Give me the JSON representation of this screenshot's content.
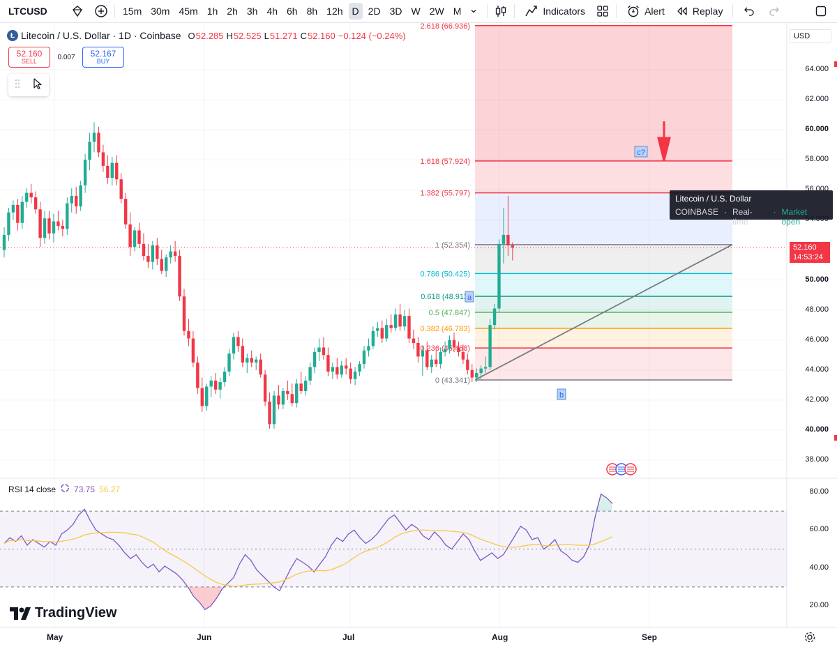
{
  "toolbar": {
    "symbol": "LTCUSD",
    "intervals": [
      "15m",
      "30m",
      "45m",
      "1h",
      "2h",
      "3h",
      "4h",
      "6h",
      "8h",
      "12h",
      "D",
      "2D",
      "3D",
      "W",
      "2W",
      "M"
    ],
    "active_interval": "D",
    "indicators_label": "Indicators",
    "alert_label": "Alert",
    "replay_label": "Replay"
  },
  "legend": {
    "title": "Litecoin / U.S. Dollar · 1D · Coinbase",
    "o_label": "O",
    "o_value": "52.285",
    "h_label": "H",
    "h_value": "52.525",
    "l_label": "L",
    "l_value": "51.271",
    "c_label": "C",
    "c_value": "52.160",
    "change": "−0.124 (−0.24%)"
  },
  "trade": {
    "sell_price": "52.160",
    "sell_label": "SELL",
    "spread": "0.007",
    "buy_price": "52.167",
    "buy_label": "BUY"
  },
  "tooltip": {
    "title": "Litecoin / U.S. Dollar",
    "exchange": "COINBASE",
    "sep1": "·",
    "feed": "Real-time",
    "sep2": "·",
    "status": "Market open"
  },
  "price_scale": {
    "currency": "USD",
    "labels": [
      "64.000",
      "62.000",
      "60.000",
      "58.000",
      "56.000",
      "54.000",
      "50.000",
      "48.000",
      "46.000",
      "44.000",
      "42.000",
      "40.000",
      "38.000"
    ],
    "bold_labels": [
      "60.000",
      "50.000",
      "40.000"
    ],
    "current_price": "52.160",
    "countdown": "14:53:24"
  },
  "fib_levels": [
    {
      "label": "2.618 (66.936)",
      "value": 66.936,
      "color": "#f23645"
    },
    {
      "label": "1.618 (57.924)",
      "value": 57.924,
      "color": "#f23645"
    },
    {
      "label": "1.382 (55.797)",
      "value": 55.797,
      "color": "#f23645"
    },
    {
      "label": "1 (52.354)",
      "value": 52.354,
      "color": "#787b86"
    },
    {
      "label": "0.786 (50.425)",
      "value": 50.425,
      "color": "#00bcd4"
    },
    {
      "label": "0.618 (48.911)",
      "value": 48.911,
      "color": "#089981"
    },
    {
      "label": "0.5 (47.847)",
      "value": 47.847,
      "color": "#4caf50"
    },
    {
      "label": "0.382 (46.783)",
      "value": 46.783,
      "color": "#ff9800"
    },
    {
      "label": "0.236 (45.468)",
      "value": 45.468,
      "color": "#f23645"
    },
    {
      "label": "0 (43.341)",
      "value": 43.341,
      "color": "#787b86"
    }
  ],
  "wave_labels": {
    "a": "a",
    "b": "b",
    "c": "c?"
  },
  "rsi": {
    "label": "RSI 14 close",
    "value": "73.75",
    "ma_value": "56.27",
    "scale": [
      "80.00",
      "60.00",
      "40.00",
      "20.00"
    ],
    "upper": 70,
    "lower": 30,
    "mid": 50
  },
  "time_axis": [
    "May",
    "Jun",
    "Jul",
    "Aug",
    "Sep"
  ],
  "brand": "TradingView",
  "colors": {
    "up": "#22ab94",
    "down": "#f23645",
    "accent": "#2962ff"
  },
  "candles": [
    [
      52.0,
      53.5,
      51.5,
      53.0
    ],
    [
      53.0,
      54.8,
      52.6,
      54.5
    ],
    [
      54.5,
      55.3,
      54.0,
      55.0
    ],
    [
      55.0,
      55.4,
      53.3,
      53.8
    ],
    [
      53.8,
      55.6,
      53.4,
      55.2
    ],
    [
      55.2,
      56.1,
      54.8,
      55.8
    ],
    [
      55.8,
      56.4,
      55.1,
      55.5
    ],
    [
      55.5,
      55.9,
      54.4,
      54.7
    ],
    [
      54.7,
      55.2,
      52.2,
      52.8
    ],
    [
      52.8,
      54.6,
      52.4,
      54.1
    ],
    [
      54.1,
      54.6,
      52.7,
      53.1
    ],
    [
      53.1,
      54.4,
      52.5,
      53.9
    ],
    [
      53.9,
      54.6,
      53.3,
      53.6
    ],
    [
      53.6,
      54.0,
      52.9,
      53.4
    ],
    [
      53.4,
      55.5,
      53.0,
      55.1
    ],
    [
      55.1,
      56.1,
      54.5,
      55.6
    ],
    [
      55.6,
      56.2,
      54.4,
      54.9
    ],
    [
      54.9,
      56.6,
      54.6,
      56.3
    ],
    [
      56.3,
      58.4,
      55.8,
      58.0
    ],
    [
      58.0,
      59.8,
      57.3,
      59.2
    ],
    [
      59.2,
      60.5,
      58.5,
      59.8
    ],
    [
      59.8,
      60.2,
      58.2,
      58.5
    ],
    [
      58.5,
      59.0,
      57.2,
      57.6
    ],
    [
      57.6,
      58.3,
      56.4,
      56.8
    ],
    [
      56.8,
      58.2,
      56.3,
      57.8
    ],
    [
      57.8,
      58.3,
      56.3,
      56.7
    ],
    [
      56.7,
      57.1,
      55.1,
      55.4
    ],
    [
      55.4,
      55.8,
      53.4,
      53.7
    ],
    [
      53.7,
      54.5,
      51.6,
      52.2
    ],
    [
      52.2,
      53.5,
      51.9,
      53.3
    ],
    [
      53.3,
      53.8,
      52.1,
      52.4
    ],
    [
      52.4,
      53.1,
      51.3,
      51.6
    ],
    [
      51.6,
      52.4,
      50.8,
      51.2
    ],
    [
      51.2,
      52.6,
      50.7,
      52.3
    ],
    [
      52.3,
      52.8,
      51.0,
      51.4
    ],
    [
      51.4,
      52.0,
      50.4,
      50.6
    ],
    [
      50.6,
      51.7,
      50.2,
      51.5
    ],
    [
      51.5,
      52.3,
      51.1,
      51.9
    ],
    [
      51.9,
      52.6,
      51.2,
      51.6
    ],
    [
      51.6,
      52.0,
      48.6,
      48.9
    ],
    [
      48.9,
      49.4,
      46.3,
      46.6
    ],
    [
      46.6,
      47.4,
      45.6,
      46.1
    ],
    [
      46.1,
      46.6,
      44.2,
      44.5
    ],
    [
      44.5,
      44.9,
      42.4,
      42.8
    ],
    [
      42.8,
      43.5,
      41.2,
      41.6
    ],
    [
      41.6,
      43.1,
      41.3,
      42.9
    ],
    [
      42.9,
      43.6,
      42.2,
      43.3
    ],
    [
      43.3,
      43.8,
      42.4,
      42.7
    ],
    [
      42.7,
      43.5,
      42.1,
      43.2
    ],
    [
      43.2,
      44.2,
      42.9,
      43.9
    ],
    [
      43.9,
      45.4,
      43.6,
      45.1
    ],
    [
      45.1,
      46.5,
      44.7,
      46.2
    ],
    [
      46.2,
      46.6,
      45.2,
      45.6
    ],
    [
      45.6,
      46.1,
      44.2,
      44.5
    ],
    [
      44.5,
      45.1,
      43.8,
      44.8
    ],
    [
      44.8,
      45.3,
      44.2,
      44.5
    ],
    [
      44.5,
      44.9,
      44.0,
      44.7
    ],
    [
      44.7,
      45.1,
      43.5,
      43.7
    ],
    [
      43.7,
      44.0,
      41.6,
      41.9
    ],
    [
      41.9,
      42.5,
      40.1,
      40.4
    ],
    [
      40.4,
      42.6,
      40.1,
      42.3
    ],
    [
      42.3,
      43.0,
      41.4,
      41.7
    ],
    [
      41.7,
      42.8,
      41.4,
      42.6
    ],
    [
      42.6,
      43.3,
      42.0,
      42.4
    ],
    [
      42.4,
      43.1,
      41.6,
      41.8
    ],
    [
      41.8,
      43.4,
      41.5,
      43.1
    ],
    [
      43.1,
      43.9,
      42.4,
      42.6
    ],
    [
      42.6,
      43.6,
      42.3,
      43.3
    ],
    [
      43.3,
      44.5,
      43.0,
      44.2
    ],
    [
      44.2,
      45.5,
      43.8,
      45.2
    ],
    [
      45.2,
      46.1,
      44.6,
      45.5
    ],
    [
      45.5,
      46.2,
      44.7,
      45.0
    ],
    [
      45.0,
      45.5,
      43.6,
      43.9
    ],
    [
      43.9,
      44.5,
      43.4,
      44.2
    ],
    [
      44.2,
      44.8,
      43.4,
      43.7
    ],
    [
      43.7,
      44.6,
      43.5,
      44.3
    ],
    [
      44.3,
      44.8,
      43.7,
      44.1
    ],
    [
      44.1,
      44.5,
      43.1,
      43.4
    ],
    [
      43.4,
      44.2,
      43.0,
      43.9
    ],
    [
      43.9,
      44.6,
      43.6,
      44.4
    ],
    [
      44.4,
      45.6,
      44.1,
      45.3
    ],
    [
      45.3,
      46.1,
      44.9,
      45.6
    ],
    [
      45.6,
      46.9,
      45.4,
      46.6
    ],
    [
      46.6,
      47.2,
      46.2,
      46.8
    ],
    [
      46.8,
      47.3,
      45.8,
      46.1
    ],
    [
      46.1,
      47.4,
      45.9,
      47.0
    ],
    [
      47.0,
      47.7,
      46.5,
      46.8
    ],
    [
      46.8,
      48.1,
      46.6,
      47.7
    ],
    [
      47.7,
      48.4,
      46.6,
      46.9
    ],
    [
      46.9,
      48.0,
      46.6,
      47.6
    ],
    [
      47.6,
      48.1,
      45.8,
      46.1
    ],
    [
      46.1,
      46.7,
      45.4,
      45.8
    ],
    [
      45.8,
      46.2,
      44.5,
      44.9
    ],
    [
      44.9,
      45.6,
      43.6,
      45.3
    ],
    [
      45.3,
      45.9,
      44.0,
      44.2
    ],
    [
      44.2,
      45.0,
      43.8,
      44.7
    ],
    [
      44.7,
      45.3,
      44.2,
      44.4
    ],
    [
      44.4,
      45.5,
      44.1,
      45.2
    ],
    [
      45.2,
      45.9,
      44.9,
      45.4
    ],
    [
      45.4,
      46.3,
      45.1,
      46.0
    ],
    [
      46.0,
      46.5,
      45.2,
      45.5
    ],
    [
      45.5,
      45.9,
      44.9,
      45.2
    ],
    [
      45.2,
      45.7,
      44.4,
      44.7
    ],
    [
      44.7,
      45.1,
      43.7,
      44.0
    ],
    [
      44.0,
      44.4,
      43.2,
      43.5
    ],
    [
      43.5,
      44.1,
      43.2,
      43.8
    ],
    [
      43.8,
      44.3,
      43.4,
      44.1
    ],
    [
      44.1,
      44.9,
      43.8,
      44.2
    ],
    [
      44.2,
      47.4,
      44.0,
      47.0
    ],
    [
      47.0,
      48.4,
      46.7,
      48.1
    ],
    [
      48.1,
      52.7,
      47.9,
      52.4
    ],
    [
      52.4,
      54.8,
      51.1,
      53.0
    ],
    [
      53.0,
      55.6,
      51.6,
      52.3
    ],
    [
      52.3,
      52.5,
      51.3,
      52.16
    ]
  ],
  "rsi_series": [
    53,
    56,
    54,
    57,
    52,
    55,
    53,
    51,
    54,
    52,
    58,
    60,
    63,
    68,
    71,
    65,
    60,
    58,
    56,
    55,
    52,
    48,
    45,
    47,
    43,
    40,
    42,
    38,
    41,
    39,
    37,
    34,
    30,
    25,
    22,
    18,
    20,
    24,
    29,
    32,
    35,
    42,
    47,
    44,
    39,
    36,
    33,
    30,
    28,
    34,
    40,
    45,
    43,
    41,
    38,
    42,
    46,
    52,
    56,
    54,
    58,
    60,
    56,
    53,
    55,
    58,
    62,
    66,
    68,
    64,
    60,
    63,
    61,
    57,
    55,
    59,
    56,
    52,
    50,
    54,
    58,
    55,
    49,
    44,
    46,
    48,
    45,
    47,
    52,
    57,
    62,
    60,
    55,
    56,
    50,
    52,
    55,
    49,
    47,
    44,
    43,
    46,
    52,
    67,
    79,
    77,
    74
  ]
}
